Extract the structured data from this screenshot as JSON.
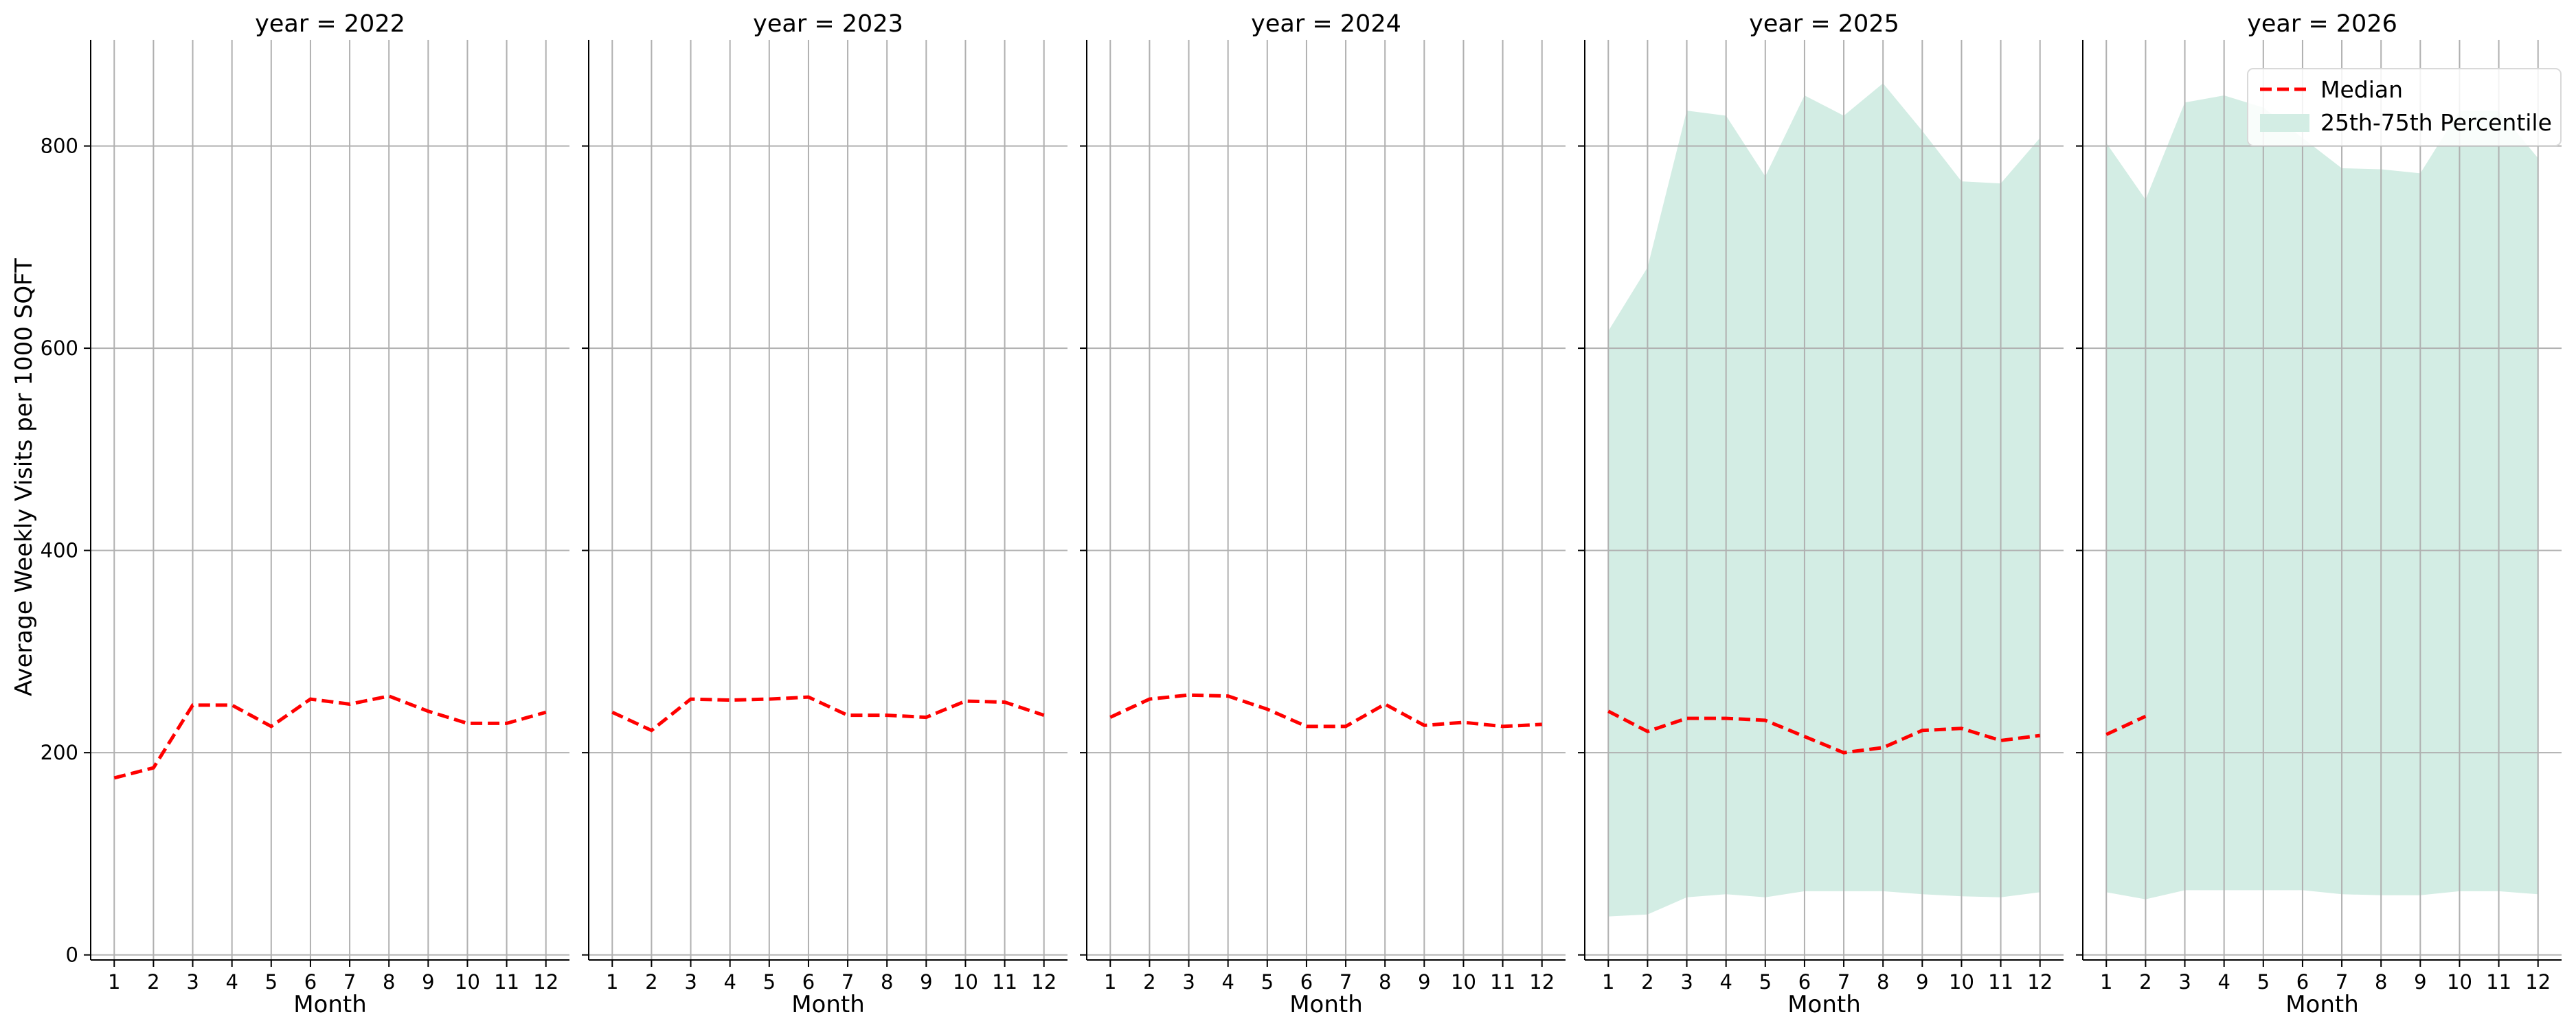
{
  "chart_data": {
    "type": "line",
    "ylabel": "Average Weekly Visits per 1000 SQFT",
    "xlabel": "Month",
    "ylim": [
      -5,
      905
    ],
    "xlim": [
      0.4,
      12.6
    ],
    "yticks": [
      0,
      200,
      400,
      600,
      800
    ],
    "xticks": [
      1,
      2,
      3,
      4,
      5,
      6,
      7,
      8,
      9,
      10,
      11,
      12
    ],
    "grid": true,
    "legend": {
      "placement": "top-right",
      "entries": [
        "Median",
        "25th-75th Percentile"
      ]
    },
    "colors": {
      "median": "#ff0000",
      "band": "#d3ede4",
      "grid": "#b0b0b0"
    },
    "panels": [
      {
        "title": "year = 2022",
        "median": [
          [
            1,
            175
          ],
          [
            2,
            185
          ],
          [
            3,
            247
          ],
          [
            4,
            247
          ],
          [
            5,
            226
          ],
          [
            6,
            253
          ],
          [
            7,
            248
          ],
          [
            8,
            256
          ],
          [
            9,
            241
          ],
          [
            10,
            229
          ],
          [
            11,
            229
          ],
          [
            12,
            240
          ]
        ],
        "band": []
      },
      {
        "title": "year = 2023",
        "median": [
          [
            1,
            240
          ],
          [
            2,
            222
          ],
          [
            3,
            253
          ],
          [
            4,
            252
          ],
          [
            5,
            253
          ],
          [
            6,
            255
          ],
          [
            7,
            237
          ],
          [
            8,
            237
          ],
          [
            9,
            235
          ],
          [
            10,
            251
          ],
          [
            11,
            250
          ],
          [
            12,
            237
          ]
        ],
        "band": []
      },
      {
        "title": "year = 2024",
        "median": [
          [
            1,
            235
          ],
          [
            2,
            253
          ],
          [
            3,
            257
          ],
          [
            4,
            256
          ],
          [
            5,
            243
          ],
          [
            6,
            226
          ],
          [
            7,
            226
          ],
          [
            8,
            248
          ],
          [
            9,
            227
          ],
          [
            10,
            230
          ],
          [
            11,
            226
          ],
          [
            12,
            228
          ]
        ],
        "band": []
      },
      {
        "title": "year = 2025",
        "median": [
          [
            1,
            241
          ],
          [
            2,
            221
          ],
          [
            3,
            234
          ],
          [
            4,
            234
          ],
          [
            5,
            232
          ],
          [
            6,
            216
          ],
          [
            7,
            200
          ],
          [
            8,
            205
          ],
          [
            9,
            222
          ],
          [
            10,
            224
          ],
          [
            11,
            212
          ],
          [
            12,
            217
          ]
        ],
        "band": [
          [
            1,
            38,
            617
          ],
          [
            2,
            40,
            680
          ],
          [
            3,
            57,
            835
          ],
          [
            4,
            60,
            830
          ],
          [
            5,
            57,
            770
          ],
          [
            6,
            63,
            850
          ],
          [
            7,
            63,
            830
          ],
          [
            8,
            63,
            862
          ],
          [
            9,
            60,
            815
          ],
          [
            10,
            58,
            765
          ],
          [
            11,
            57,
            763
          ],
          [
            12,
            62,
            808
          ]
        ]
      },
      {
        "title": "year = 2026",
        "median": [
          [
            1,
            218
          ],
          [
            2,
            236
          ]
        ],
        "band": [
          [
            1,
            62,
            803
          ],
          [
            2,
            55,
            747
          ],
          [
            3,
            64,
            843
          ],
          [
            4,
            64,
            850
          ],
          [
            5,
            64,
            838
          ],
          [
            6,
            64,
            808
          ],
          [
            7,
            60,
            778
          ],
          [
            8,
            59,
            777
          ],
          [
            9,
            59,
            773
          ],
          [
            10,
            63,
            835
          ],
          [
            11,
            63,
            835
          ],
          [
            12,
            60,
            788
          ]
        ]
      }
    ]
  }
}
